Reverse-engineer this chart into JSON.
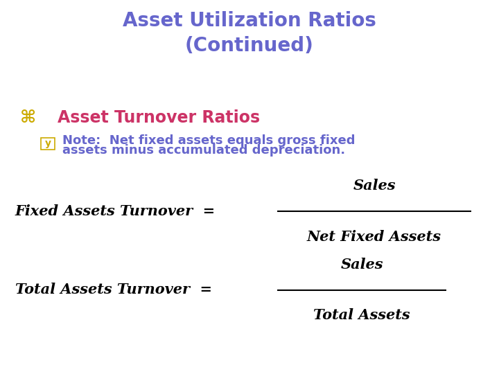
{
  "title_line1": "Asset Utilization Ratios",
  "title_line2": "(Continued)",
  "title_color": "#6666cc",
  "bullet1_symbol": "⌘",
  "bullet1_symbol_color": "#ccaa00",
  "bullet1_text": "Asset Turnover Ratios",
  "bullet1_text_color": "#cc3366",
  "bullet2_symbol": "y",
  "bullet2_symbol_color": "#ccaa00",
  "bullet2_line1": "Note:  Net fixed assets equals gross fixed",
  "bullet2_line2": "assets minus accumulated depreciation.",
  "bullet2_text_color": "#6666cc",
  "formula1_left": "Fixed Assets Turnover  =",
  "formula1_numerator": "Sales",
  "formula1_denominator": "Net Fixed Assets",
  "formula2_left": "Total Assets Turnover  =",
  "formula2_numerator": "Sales",
  "formula2_denominator": "Total Assets",
  "formula_color": "#000000",
  "background_color": "#ffffff"
}
